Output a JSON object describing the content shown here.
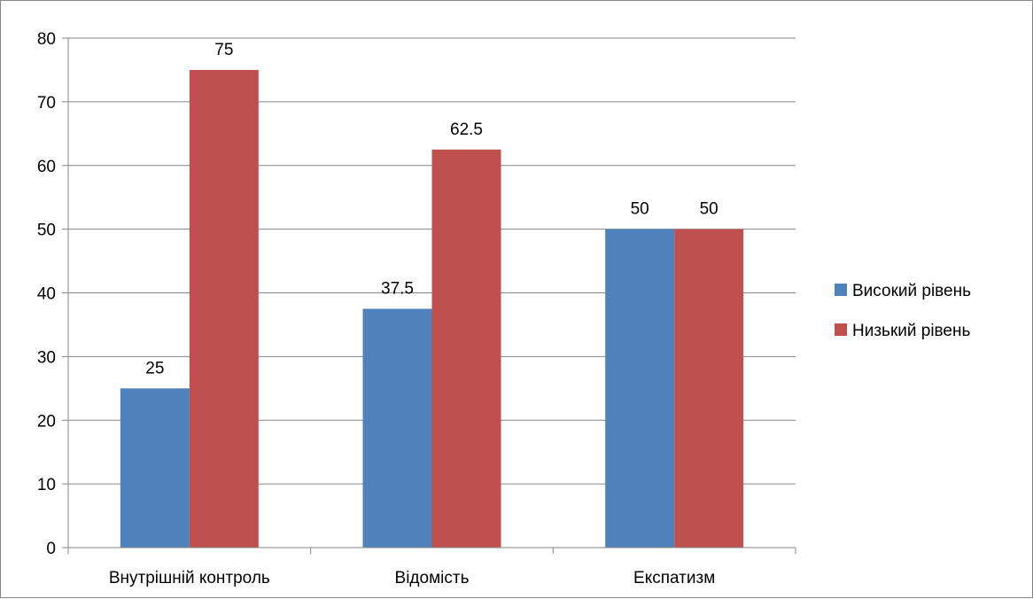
{
  "chart_data": {
    "type": "bar",
    "categories": [
      "Внутрішній контроль",
      "Відомість",
      "Експатизм"
    ],
    "series": [
      {
        "name": "Високий рівень",
        "values": [
          25,
          37.5,
          50
        ],
        "color": "#4F81BD"
      },
      {
        "name": "Низький рівень",
        "values": [
          75,
          62.5,
          50
        ],
        "color": "#C0504D"
      }
    ],
    "data_labels": [
      [
        "25",
        "37.5",
        "50"
      ],
      [
        "75",
        "62.5",
        "50"
      ]
    ],
    "y_ticks": [
      "0",
      "10",
      "20",
      "30",
      "40",
      "50",
      "60",
      "70",
      "80"
    ],
    "ylim": [
      0,
      80
    ],
    "y_step": 10,
    "grid": true,
    "gridline_color": "#868686",
    "legend_position": "right",
    "title": "",
    "xlabel": "",
    "ylabel": ""
  }
}
